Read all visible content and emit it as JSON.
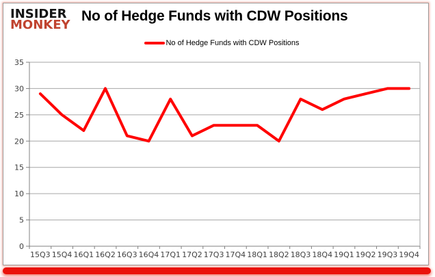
{
  "brand": {
    "line1": "INSIDER",
    "line2": "MONKEY",
    "line1_color": "#141414",
    "line2_color": "#c0432f"
  },
  "header": {
    "title": "No of Hedge Funds with CDW Positions"
  },
  "legend": {
    "label": "No of Hedge Funds with CDW Positions",
    "swatch_color": "#ff0000"
  },
  "chart_data": {
    "type": "line",
    "title": "No of Hedge Funds with CDW Positions",
    "categories": [
      "15Q3",
      "15Q4",
      "16Q1",
      "16Q2",
      "16Q3",
      "16Q4",
      "17Q1",
      "17Q2",
      "17Q3",
      "17Q4",
      "18Q1",
      "18Q2",
      "18Q3",
      "18Q4",
      "19Q1",
      "19Q2",
      "19Q3",
      "19Q4"
    ],
    "series": [
      {
        "name": "No of Hedge Funds with CDW Positions",
        "color": "#ff0000",
        "values": [
          29,
          25,
          22,
          30,
          21,
          20,
          28,
          21,
          23,
          23,
          23,
          20,
          28,
          26,
          28,
          29,
          30,
          30
        ]
      }
    ],
    "xlabel": "",
    "ylabel": "",
    "ylim": [
      0,
      35
    ],
    "ytick_step": 5,
    "yticks": [
      0,
      5,
      10,
      15,
      20,
      25,
      30,
      35
    ],
    "grid": "horizontal",
    "legend_position": "top-center",
    "gridline_color": "#a6a6a6",
    "axis_color": "#808080",
    "tick_label_color": "#404040"
  },
  "footer": {
    "bar_color": "#ea120b"
  }
}
